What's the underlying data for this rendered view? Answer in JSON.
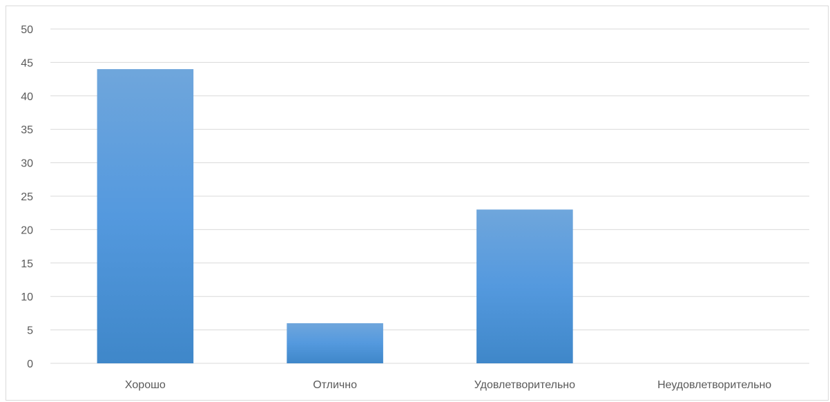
{
  "chart_data": {
    "type": "bar",
    "categories": [
      "Хорошо",
      "Отлично",
      "Удовлетворительно",
      "Неудовлетворительно"
    ],
    "values": [
      44,
      6,
      23,
      0
    ],
    "title": "",
    "xlabel": "",
    "ylabel": "",
    "ylim": [
      0,
      50
    ],
    "yticks": [
      0,
      5,
      10,
      15,
      20,
      25,
      30,
      35,
      40,
      45,
      50
    ],
    "grid": true,
    "legend": "none",
    "bar_color": "#5b9bd5"
  }
}
